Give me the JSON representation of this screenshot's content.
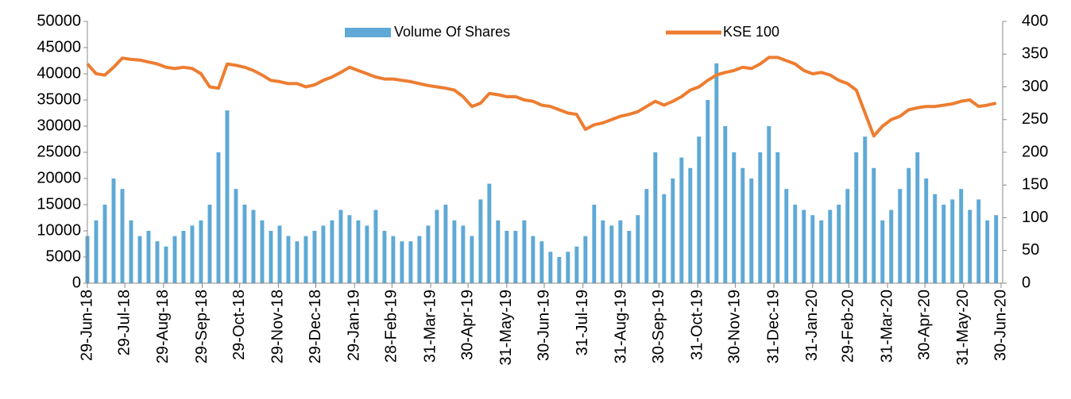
{
  "chart_data": {
    "type": "combo",
    "x": [
      "2018-06-29",
      "2018-07-06",
      "2018-07-13",
      "2018-07-20",
      "2018-07-27",
      "2018-08-03",
      "2018-08-10",
      "2018-08-17",
      "2018-08-24",
      "2018-08-31",
      "2018-09-07",
      "2018-09-14",
      "2018-09-21",
      "2018-09-28",
      "2018-10-05",
      "2018-10-12",
      "2018-10-19",
      "2018-10-26",
      "2018-11-02",
      "2018-11-09",
      "2018-11-16",
      "2018-11-23",
      "2018-11-30",
      "2018-12-07",
      "2018-12-14",
      "2018-12-21",
      "2018-12-28",
      "2019-01-04",
      "2019-01-11",
      "2019-01-18",
      "2019-01-25",
      "2019-02-01",
      "2019-02-08",
      "2019-02-15",
      "2019-02-22",
      "2019-03-01",
      "2019-03-08",
      "2019-03-15",
      "2019-03-22",
      "2019-03-29",
      "2019-04-05",
      "2019-04-12",
      "2019-04-19",
      "2019-04-26",
      "2019-05-03",
      "2019-05-10",
      "2019-05-17",
      "2019-05-24",
      "2019-05-31",
      "2019-06-07",
      "2019-06-14",
      "2019-06-21",
      "2019-06-28",
      "2019-07-05",
      "2019-07-12",
      "2019-07-19",
      "2019-07-26",
      "2019-08-02",
      "2019-08-09",
      "2019-08-16",
      "2019-08-23",
      "2019-08-30",
      "2019-09-06",
      "2019-09-13",
      "2019-09-20",
      "2019-09-27",
      "2019-10-04",
      "2019-10-11",
      "2019-10-18",
      "2019-10-25",
      "2019-11-01",
      "2019-11-08",
      "2019-11-15",
      "2019-11-22",
      "2019-11-29",
      "2019-12-06",
      "2019-12-13",
      "2019-12-20",
      "2019-12-27",
      "2020-01-03",
      "2020-01-10",
      "2020-01-17",
      "2020-01-24",
      "2020-01-31",
      "2020-02-07",
      "2020-02-14",
      "2020-02-21",
      "2020-02-28",
      "2020-03-06",
      "2020-03-13",
      "2020-03-20",
      "2020-03-27",
      "2020-04-03",
      "2020-04-10",
      "2020-04-17",
      "2020-04-24",
      "2020-05-01",
      "2020-05-08",
      "2020-05-15",
      "2020-05-22",
      "2020-05-29",
      "2020-06-05",
      "2020-06-12",
      "2020-06-19",
      "2020-06-26"
    ],
    "series": [
      {
        "name": "Volume Of Shares",
        "type": "bar",
        "color": "#5ea9d6",
        "axis": "y",
        "values": [
          9000,
          12000,
          15000,
          20000,
          18000,
          12000,
          9000,
          10000,
          8000,
          7000,
          9000,
          10000,
          11000,
          12000,
          15000,
          25000,
          33000,
          18000,
          15000,
          14000,
          12000,
          10000,
          11000,
          9000,
          8000,
          9000,
          10000,
          11000,
          12000,
          14000,
          13000,
          12000,
          11000,
          14000,
          10000,
          9000,
          8000,
          8000,
          9000,
          11000,
          14000,
          15000,
          12000,
          11000,
          9000,
          16000,
          19000,
          12000,
          10000,
          10000,
          12000,
          9000,
          8000,
          6000,
          5000,
          6000,
          7000,
          9000,
          15000,
          12000,
          11000,
          12000,
          10000,
          13000,
          18000,
          25000,
          17000,
          20000,
          24000,
          22000,
          28000,
          35000,
          42000,
          30000,
          25000,
          22000,
          20000,
          25000,
          30000,
          25000,
          18000,
          15000,
          14000,
          13000,
          12000,
          14000,
          15000,
          18000,
          25000,
          28000,
          22000,
          12000,
          14000,
          18000,
          22000,
          25000,
          20000,
          17000,
          15000,
          16000,
          18000,
          14000,
          16000,
          12000,
          13000
        ]
      },
      {
        "name": "KSE 100",
        "type": "line",
        "color": "#ed7d31",
        "axis": "y2",
        "values": [
          335,
          320,
          318,
          330,
          344,
          342,
          341,
          338,
          335,
          330,
          328,
          330,
          328,
          320,
          300,
          298,
          335,
          333,
          330,
          325,
          318,
          310,
          308,
          305,
          305,
          300,
          303,
          310,
          315,
          322,
          330,
          325,
          320,
          315,
          312,
          312,
          310,
          308,
          305,
          302,
          300,
          298,
          295,
          285,
          270,
          275,
          290,
          288,
          285,
          285,
          280,
          278,
          272,
          270,
          265,
          260,
          258,
          235,
          242,
          245,
          250,
          255,
          258,
          262,
          270,
          278,
          272,
          278,
          285,
          295,
          300,
          310,
          318,
          322,
          325,
          330,
          328,
          335,
          345,
          345,
          340,
          335,
          325,
          320,
          322,
          318,
          310,
          305,
          295,
          260,
          225,
          240,
          250,
          255,
          265,
          268,
          270,
          270,
          272,
          274,
          278,
          280,
          270,
          272,
          275
        ]
      }
    ],
    "xlim": [
      "2018-06-29",
      "2020-06-30"
    ],
    "xticks": [
      {
        "value": "2018-06-29",
        "label": "29-Jun-18"
      },
      {
        "value": "2018-07-29",
        "label": "29-Jul-18"
      },
      {
        "value": "2018-08-29",
        "label": "29-Aug-18"
      },
      {
        "value": "2018-09-29",
        "label": "29-Sep-18"
      },
      {
        "value": "2018-10-29",
        "label": "29-Oct-18"
      },
      {
        "value": "2018-11-29",
        "label": "29-Nov-18"
      },
      {
        "value": "2018-12-29",
        "label": "29-Dec-18"
      },
      {
        "value": "2019-01-29",
        "label": "29-Jan-19"
      },
      {
        "value": "2019-02-28",
        "label": "28-Feb-19"
      },
      {
        "value": "2019-03-31",
        "label": "31-Mar-19"
      },
      {
        "value": "2019-04-30",
        "label": "30-Apr-19"
      },
      {
        "value": "2019-05-31",
        "label": "31-May-19"
      },
      {
        "value": "2019-06-30",
        "label": "30-Jun-19"
      },
      {
        "value": "2019-07-31",
        "label": "31-Jul-19"
      },
      {
        "value": "2019-08-31",
        "label": "31-Aug-19"
      },
      {
        "value": "2019-09-30",
        "label": "30-Sep-19"
      },
      {
        "value": "2019-10-31",
        "label": "31-Oct-19"
      },
      {
        "value": "2019-11-30",
        "label": "30-Nov-19"
      },
      {
        "value": "2019-12-31",
        "label": "31-Dec-19"
      },
      {
        "value": "2020-01-31",
        "label": "31-Jan-20"
      },
      {
        "value": "2020-02-29",
        "label": "29-Feb-20"
      },
      {
        "value": "2020-03-31",
        "label": "31-Mar-20"
      },
      {
        "value": "2020-04-30",
        "label": "30-Apr-20"
      },
      {
        "value": "2020-05-31",
        "label": "31-May-20"
      },
      {
        "value": "2020-06-30",
        "label": "30-Jun-20"
      }
    ],
    "ylim": [
      0,
      50000
    ],
    "yticks": [
      0,
      5000,
      10000,
      15000,
      20000,
      25000,
      30000,
      35000,
      40000,
      45000,
      50000
    ],
    "y2lim": [
      0,
      400
    ],
    "y2ticks": [
      0,
      50,
      100,
      150,
      200,
      250,
      300,
      350,
      400
    ]
  }
}
